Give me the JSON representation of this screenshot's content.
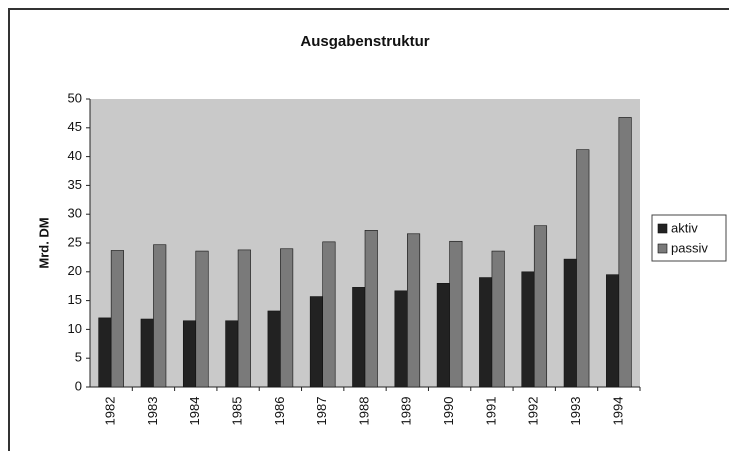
{
  "chart_data": {
    "type": "bar",
    "title": "Ausgabenstruktur",
    "y_label": "Mrd. DM",
    "categories": [
      "1982",
      "1983",
      "1984",
      "1985",
      "1986",
      "1987",
      "1988",
      "1989",
      "1990",
      "1991",
      "1992",
      "1993",
      "1994"
    ],
    "series": [
      {
        "name": "aktiv",
        "color": "#222222",
        "values": [
          12,
          11.8,
          11.5,
          11.5,
          13.2,
          15.7,
          17.3,
          16.7,
          18,
          19,
          20,
          22.2,
          19.5
        ]
      },
      {
        "name": "passiv",
        "color": "#7a7a7a",
        "values": [
          23.7,
          24.7,
          23.6,
          23.8,
          24,
          25.2,
          27.2,
          26.6,
          25.3,
          23.6,
          28,
          41.2,
          46.8
        ]
      }
    ],
    "ylim": [
      0,
      50
    ],
    "yticks": [
      0,
      5,
      10,
      15,
      20,
      25,
      30,
      35,
      40,
      45,
      50
    ],
    "legend": "right"
  }
}
